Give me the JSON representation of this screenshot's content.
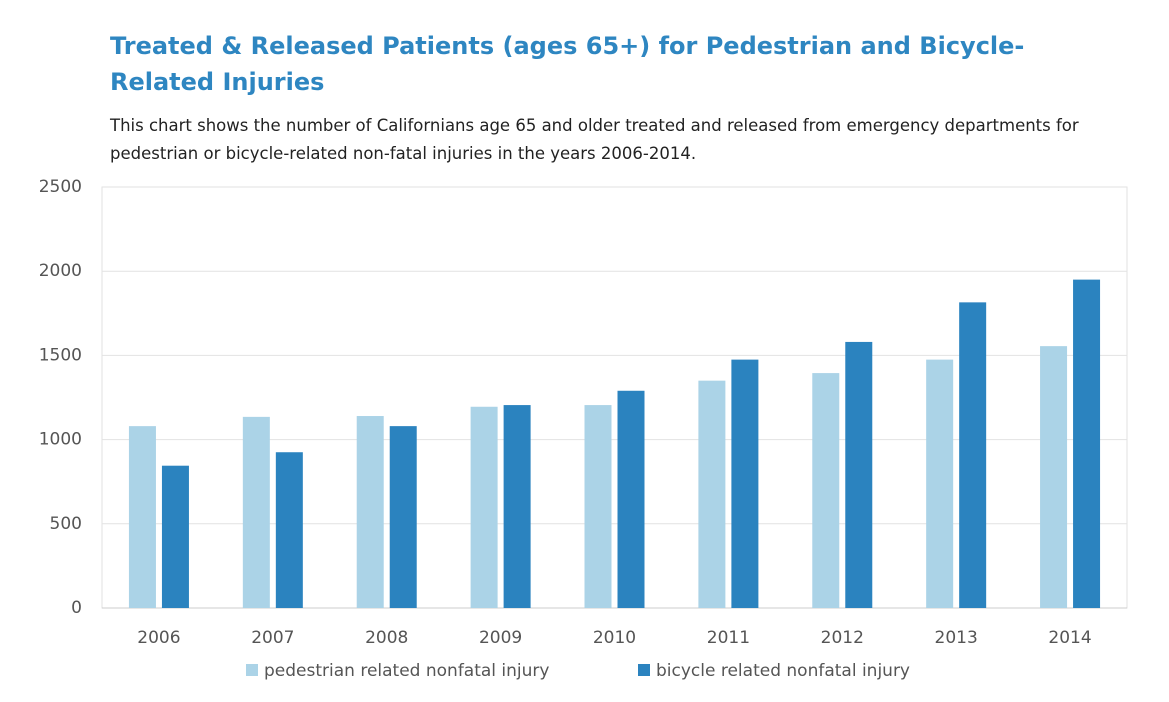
{
  "chart_data": {
    "type": "bar",
    "title": "Treated & Released Patients (ages 65+) for Pedestrian and Bicycle-Related Injuries",
    "subtitle": "This chart shows the number of Californians age 65 and older treated and released from emergency departments for pedestrian or bicycle-related non-fatal injuries in the years 2006-2014.",
    "categories": [
      "2006",
      "2007",
      "2008",
      "2009",
      "2010",
      "2011",
      "2012",
      "2013",
      "2014"
    ],
    "series": [
      {
        "name": "pedestrian related nonfatal injury",
        "color": "#abd3e7",
        "values": [
          1080,
          1135,
          1140,
          1195,
          1205,
          1350,
          1395,
          1475,
          1555
        ]
      },
      {
        "name": "bicycle related nonfatal injury",
        "color": "#2b83bf",
        "values": [
          845,
          925,
          1080,
          1205,
          1290,
          1475,
          1580,
          1815,
          1950
        ]
      }
    ],
    "ylim": [
      0,
      2500
    ],
    "yticks": [
      0,
      500,
      1000,
      1500,
      2000,
      2500
    ],
    "grid": true,
    "legend": "bottom"
  }
}
